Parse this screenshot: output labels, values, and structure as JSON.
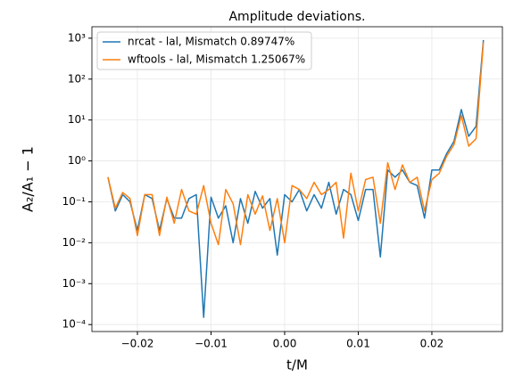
{
  "chart_data": {
    "type": "line",
    "title": "Amplitude deviations.",
    "xlabel": "t/M",
    "ylabel": "A₂/A₁ − 1",
    "x": [
      -0.024,
      -0.023,
      -0.022,
      -0.021,
      -0.02,
      -0.019,
      -0.018,
      -0.017,
      -0.016,
      -0.015,
      -0.014,
      -0.013,
      -0.012,
      -0.011,
      -0.01,
      -0.009,
      -0.008,
      -0.007,
      -0.006,
      -0.005,
      -0.004,
      -0.003,
      -0.002,
      -0.001,
      0.0,
      0.001,
      0.002,
      0.003,
      0.004,
      0.005,
      0.006,
      0.007,
      0.008,
      0.009,
      0.01,
      0.011,
      0.012,
      0.013,
      0.014,
      0.015,
      0.016,
      0.017,
      0.018,
      0.019,
      0.02,
      0.021,
      0.022,
      0.023,
      0.024,
      0.025,
      0.026,
      0.027
    ],
    "series": [
      {
        "name": "nrcat - lal, Mismatch 0.89747%",
        "color": "#1f77b4",
        "values": [
          0.4,
          0.06,
          0.15,
          0.1,
          0.02,
          0.15,
          0.12,
          0.02,
          0.12,
          0.04,
          0.04,
          0.12,
          0.15,
          0.00015,
          0.13,
          0.04,
          0.08,
          0.01,
          0.12,
          0.03,
          0.18,
          0.07,
          0.12,
          0.005,
          0.15,
          0.1,
          0.2,
          0.06,
          0.15,
          0.07,
          0.3,
          0.05,
          0.2,
          0.15,
          0.035,
          0.2,
          0.2,
          0.0045,
          0.6,
          0.4,
          0.6,
          0.3,
          0.25,
          0.04,
          0.6,
          0.6,
          1.5,
          3,
          18,
          4,
          7,
          900
        ]
      },
      {
        "name": "wftools - lal, Mismatch 1.25067%",
        "color": "#ff7f0e",
        "values": [
          0.4,
          0.07,
          0.17,
          0.12,
          0.015,
          0.15,
          0.15,
          0.015,
          0.13,
          0.03,
          0.2,
          0.06,
          0.05,
          0.25,
          0.03,
          0.009,
          0.2,
          0.09,
          0.009,
          0.15,
          0.05,
          0.14,
          0.02,
          0.12,
          0.01,
          0.25,
          0.2,
          0.12,
          0.3,
          0.15,
          0.2,
          0.3,
          0.013,
          0.5,
          0.06,
          0.35,
          0.4,
          0.03,
          0.9,
          0.2,
          0.8,
          0.3,
          0.4,
          0.06,
          0.35,
          0.5,
          1.3,
          2.5,
          13,
          2.3,
          3.5,
          800
        ]
      }
    ],
    "xlim": [
      -0.02618,
      0.02958
    ],
    "ylim": [
      6.76e-05,
      1905
    ],
    "ylog": true,
    "xticks": [
      {
        "value": -0.02,
        "label": "−0.02"
      },
      {
        "value": -0.01,
        "label": "−0.01"
      },
      {
        "value": 0,
        "label": "0.00"
      },
      0.01,
      0.02
    ],
    "yticks": [
      {
        "value": 0.0001,
        "label": "10⁻⁴"
      },
      {
        "value": 0.001,
        "label": "10⁻³"
      },
      {
        "value": 0.01,
        "label": "10⁻²"
      },
      {
        "value": 0.1,
        "label": "10⁻¹"
      },
      {
        "value": 1,
        "label": "10⁰"
      },
      {
        "value": 10,
        "label": "10¹"
      },
      {
        "value": 100,
        "label": "10²"
      },
      {
        "value": 1000,
        "label": "10³"
      }
    ],
    "grid": true,
    "legend": "upper left"
  }
}
